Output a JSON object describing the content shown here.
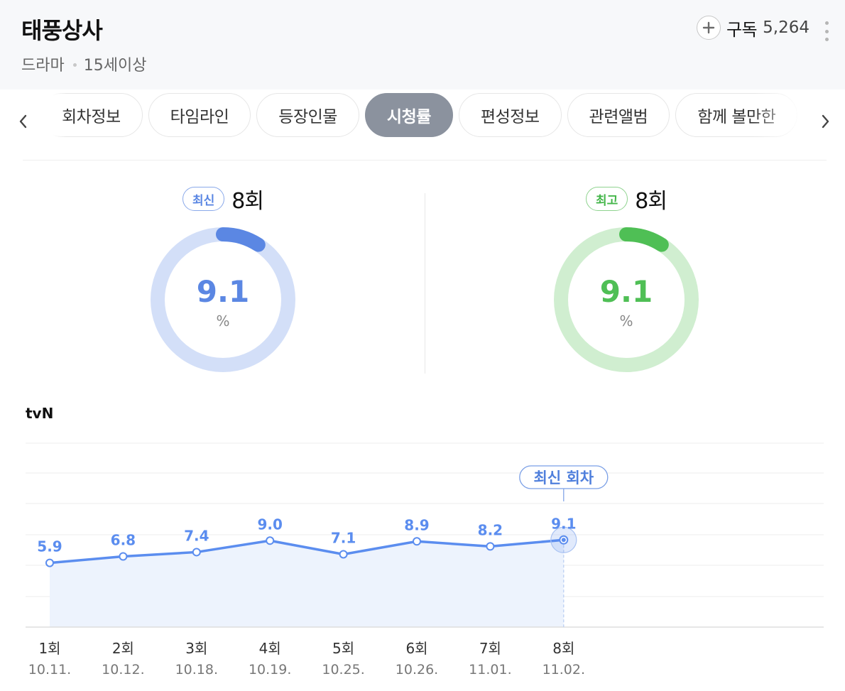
{
  "header": {
    "title": "태풍상사",
    "genre": "드라마",
    "rating": "15세이상",
    "subscribe_label": "구독",
    "subscribe_count": "5,264"
  },
  "tabs": [
    {
      "label": "회차정보",
      "active": false
    },
    {
      "label": "타임라인",
      "active": false
    },
    {
      "label": "등장인물",
      "active": false
    },
    {
      "label": "시청률",
      "active": true
    },
    {
      "label": "편성정보",
      "active": false
    },
    {
      "label": "관련앨범",
      "active": false
    },
    {
      "label": "함께 볼만한",
      "active": false
    }
  ],
  "latest": {
    "badge": "최신",
    "episode": "8회",
    "value": "9.1",
    "value_fraction": 0.091,
    "unit": "%",
    "color": "#5b87e3",
    "track_color": "#d3dff8"
  },
  "highest": {
    "badge": "최고",
    "episode": "8회",
    "value": "9.1",
    "value_fraction": 0.091,
    "unit": "%",
    "color": "#4fbf55",
    "track_color": "#d0eed0"
  },
  "chart_data": {
    "type": "line",
    "title": "tvN",
    "categories": [
      "1회",
      "2회",
      "3회",
      "4회",
      "5회",
      "6회",
      "7회",
      "8회"
    ],
    "dates": [
      "10.11.",
      "10.12.",
      "10.18.",
      "10.19.",
      "10.25.",
      "10.26.",
      "11.01.",
      "11.02."
    ],
    "series": [
      {
        "values": [
          5.9,
          6.8,
          7.4,
          9.0,
          7.1,
          8.9,
          8.2,
          9.1
        ]
      }
    ],
    "highlight_label": "최신 회차",
    "highlight_index": 7,
    "color": "#5b8def",
    "fill_color": "#edf3fd"
  }
}
